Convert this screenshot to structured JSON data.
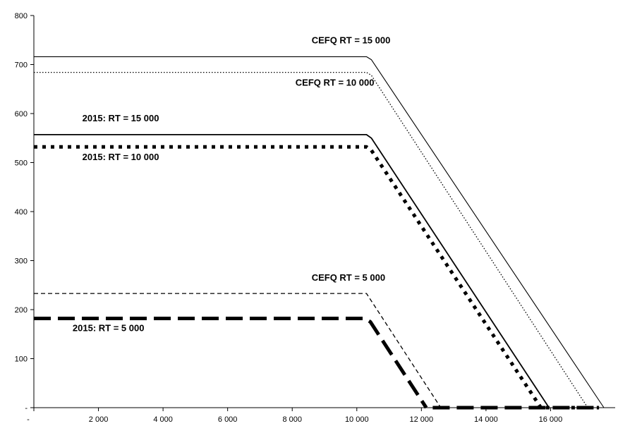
{
  "chart_data": {
    "type": "line",
    "title": "",
    "xlabel": "",
    "ylabel": "",
    "xlim": [
      0,
      18000
    ],
    "ylim": [
      0,
      800
    ],
    "grid": false,
    "legend": "none",
    "x_ticks": [
      {
        "value": 0,
        "label": "-"
      },
      {
        "value": 2000,
        "label": "2 000"
      },
      {
        "value": 4000,
        "label": "4 000"
      },
      {
        "value": 6000,
        "label": "6 000"
      },
      {
        "value": 8000,
        "label": "8 000"
      },
      {
        "value": 10000,
        "label": "10 000"
      },
      {
        "value": 12000,
        "label": "12 000"
      },
      {
        "value": 14000,
        "label": "14 000"
      },
      {
        "value": 16000,
        "label": "16 000"
      }
    ],
    "y_ticks": [
      {
        "value": 0,
        "label": "-"
      },
      {
        "value": 100,
        "label": "100"
      },
      {
        "value": 200,
        "label": "200"
      },
      {
        "value": 300,
        "label": "300"
      },
      {
        "value": 400,
        "label": "400"
      },
      {
        "value": 500,
        "label": "500"
      },
      {
        "value": 600,
        "label": "600"
      },
      {
        "value": 700,
        "label": "700"
      },
      {
        "value": 800,
        "label": "800"
      }
    ],
    "series": [
      {
        "label": "CEFQ RT =  15 000",
        "style": "solid-thin",
        "color": "#000000",
        "points": [
          [
            0,
            716
          ],
          [
            10300,
            716
          ],
          [
            10450,
            710
          ],
          [
            17650,
            0
          ]
        ]
      },
      {
        "label": "CEFQ RT = 10 000",
        "style": "dotted-thin",
        "color": "#000000",
        "points": [
          [
            0,
            684
          ],
          [
            10300,
            684
          ],
          [
            10450,
            678
          ],
          [
            17150,
            0
          ]
        ]
      },
      {
        "label": "2015: RT =   15 000",
        "style": "solid-medium",
        "color": "#000000",
        "points": [
          [
            0,
            557
          ],
          [
            10300,
            557
          ],
          [
            10450,
            550
          ],
          [
            15950,
            0
          ]
        ]
      },
      {
        "label": "2015: RT =   10 000",
        "style": "dotted-thick",
        "color": "#000000",
        "points": [
          [
            0,
            532
          ],
          [
            10300,
            532
          ],
          [
            10450,
            525
          ],
          [
            15700,
            0
          ],
          [
            17500,
            0
          ]
        ]
      },
      {
        "label": "CEFQ RT =  5 000",
        "style": "dashed-thin",
        "color": "#000000",
        "points": [
          [
            0,
            233
          ],
          [
            10300,
            233
          ],
          [
            12600,
            0
          ]
        ]
      },
      {
        "label": "2015: RT =    5 000",
        "style": "dashed-thick",
        "color": "#000000",
        "points": [
          [
            0,
            182
          ],
          [
            10250,
            182
          ],
          [
            10420,
            175
          ],
          [
            12150,
            0
          ]
        ]
      },
      {
        "label": "",
        "style": "dashed-thick",
        "color": "#000000",
        "points": [
          [
            12350,
            0
          ],
          [
            17500,
            0
          ]
        ]
      }
    ],
    "annotations": [
      {
        "text": "CEFQ RT =  15 000",
        "x": 8600,
        "y": 743
      },
      {
        "text": "CEFQ RT = 10 000",
        "x": 8100,
        "y": 657
      },
      {
        "text": "2015: RT =   15 000",
        "x": 1500,
        "y": 584
      },
      {
        "text": "2015: RT =   10 000",
        "x": 1500,
        "y": 505
      },
      {
        "text": "CEFQ RT =  5 000",
        "x": 8600,
        "y": 259
      },
      {
        "text": "2015: RT =    5 000",
        "x": 1200,
        "y": 156
      }
    ]
  }
}
